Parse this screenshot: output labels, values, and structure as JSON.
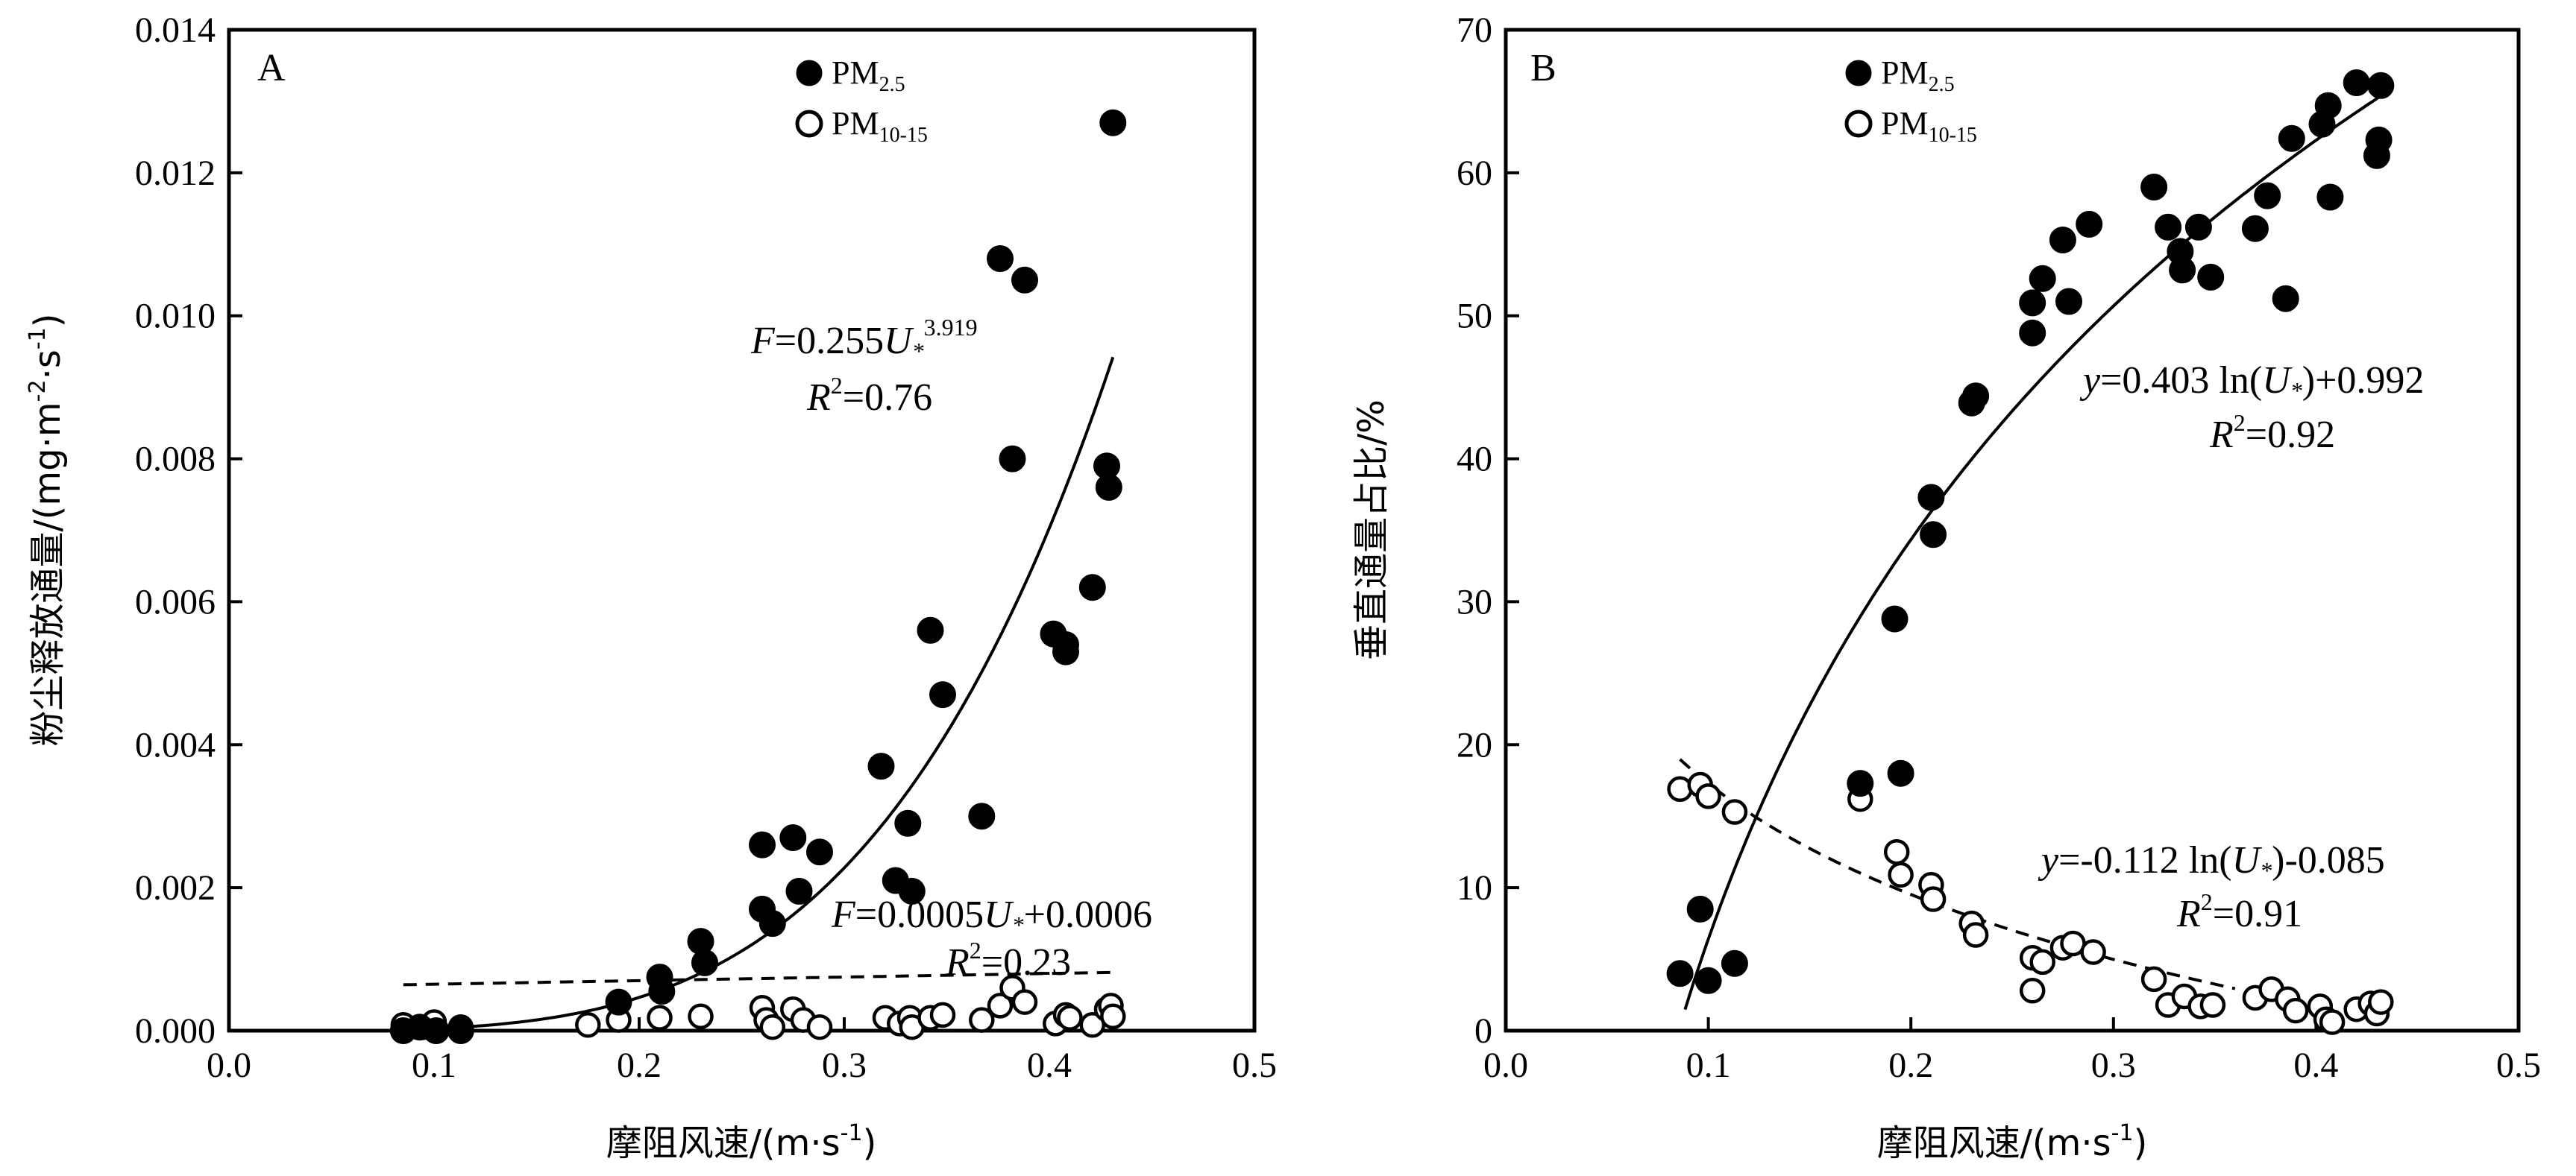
{
  "chart_data": [
    {
      "type": "scatter",
      "panel": "A",
      "xlabel_main": "摩阻风速/(m·s",
      "xlabel_sup": "-1",
      "xlabel_close": ")",
      "ylabel_main": "粉尘释放通量/(mg·m",
      "ylabel_sup1": "-2",
      "ylabel_mid": "·s",
      "ylabel_sup2": "-1",
      "ylabel_close": ")",
      "xlim": [
        0.0,
        0.5
      ],
      "ylim": [
        0.0,
        0.014
      ],
      "xticks": [
        "0.0",
        "0.1",
        "0.2",
        "0.3",
        "0.4",
        "0.5"
      ],
      "yticks": [
        "0.000",
        "0.002",
        "0.004",
        "0.006",
        "0.008",
        "0.010",
        "0.012",
        "0.014"
      ],
      "legend": {
        "placement": "top-center",
        "entries": [
          {
            "label_main": "PM",
            "label_sub": "2.5",
            "marker": "filled-circle"
          },
          {
            "label_main": "PM",
            "label_sub": "10-15",
            "marker": "open-circle"
          }
        ]
      },
      "series": [
        {
          "name": "PM2.5",
          "marker": "filled",
          "points": [
            [
              0.085,
              0.0
            ],
            [
              0.093,
              5e-05
            ],
            [
              0.101,
              0.0
            ],
            [
              0.113,
              0.0
            ],
            [
              0.19,
              0.0004
            ],
            [
              0.21,
              0.00075
            ],
            [
              0.211,
              0.00055
            ],
            [
              0.23,
              0.00125
            ],
            [
              0.232,
              0.00095
            ],
            [
              0.26,
              0.0026
            ],
            [
              0.26,
              0.0017
            ],
            [
              0.265,
              0.0015
            ],
            [
              0.275,
              0.0027
            ],
            [
              0.278,
              0.00195
            ],
            [
              0.288,
              0.0025
            ],
            [
              0.318,
              0.0037
            ],
            [
              0.325,
              0.0021
            ],
            [
              0.331,
              0.0029
            ],
            [
              0.333,
              0.00195
            ],
            [
              0.342,
              0.0056
            ],
            [
              0.348,
              0.0047
            ],
            [
              0.367,
              0.003
            ],
            [
              0.376,
              0.0108
            ],
            [
              0.382,
              0.008
            ],
            [
              0.388,
              0.0105
            ],
            [
              0.402,
              0.00555
            ],
            [
              0.408,
              0.0054
            ],
            [
              0.408,
              0.0053
            ],
            [
              0.421,
              0.0062
            ],
            [
              0.428,
              0.0079
            ],
            [
              0.429,
              0.0076
            ],
            [
              0.431,
              0.0127
            ]
          ]
        },
        {
          "name": "PM10-15",
          "marker": "open",
          "points": [
            [
              0.085,
              8e-05
            ],
            [
              0.095,
              5e-05
            ],
            [
              0.1,
              0.00012
            ],
            [
              0.113,
              5e-05
            ],
            [
              0.175,
              8e-05
            ],
            [
              0.19,
              0.00015
            ],
            [
              0.21,
              0.00018
            ],
            [
              0.23,
              0.0002
            ],
            [
              0.26,
              0.00032
            ],
            [
              0.262,
              0.00015
            ],
            [
              0.265,
              5e-05
            ],
            [
              0.275,
              0.0003
            ],
            [
              0.28,
              0.00015
            ],
            [
              0.288,
              5e-05
            ],
            [
              0.32,
              0.00018
            ],
            [
              0.327,
              0.0001
            ],
            [
              0.332,
              0.00018
            ],
            [
              0.333,
              5e-05
            ],
            [
              0.342,
              0.00018
            ],
            [
              0.348,
              0.00022
            ],
            [
              0.367,
              0.00015
            ],
            [
              0.376,
              0.00035
            ],
            [
              0.382,
              0.0006
            ],
            [
              0.388,
              0.0004
            ],
            [
              0.403,
              0.0001
            ],
            [
              0.408,
              0.00022
            ],
            [
              0.41,
              0.00018
            ],
            [
              0.421,
              8e-05
            ],
            [
              0.428,
              0.0003
            ],
            [
              0.43,
              0.00035
            ],
            [
              0.431,
              0.0002
            ]
          ]
        }
      ],
      "fits": [
        {
          "series": "PM2.5",
          "kind": "power",
          "a": 0.255,
          "b": 3.919,
          "x_range": [
            0.085,
            0.431
          ],
          "style": "solid"
        },
        {
          "series": "PM10-15",
          "kind": "linear",
          "a": 0.0005,
          "b": 0.0006,
          "x_range": [
            0.085,
            0.431
          ],
          "style": "dashed"
        }
      ],
      "equations": [
        {
          "var": "F",
          "rhs_a": "=0.255",
          "u": "U",
          "star": "*",
          "sup": "3.919",
          "rhs_b": "",
          "r_var": "R",
          "r_sup": "2",
          "r_val": "=0.76"
        },
        {
          "var": "F",
          "rhs_a": "=0.0005",
          "u": "U",
          "star": "*",
          "sup": "",
          "rhs_b": "+0.0006",
          "r_var": "R",
          "r_sup": "2",
          "r_val": "=0.23"
        }
      ]
    },
    {
      "type": "scatter",
      "panel": "B",
      "xlabel_main": "摩阻风速/(m·s",
      "xlabel_sup": "-1",
      "xlabel_close": ")",
      "ylabel_main": "垂直通量占比/%",
      "xlim": [
        0.0,
        0.5
      ],
      "ylim": [
        0,
        70
      ],
      "xticks": [
        "0.0",
        "0.1",
        "0.2",
        "0.3",
        "0.4",
        "0.5"
      ],
      "yticks": [
        "0",
        "10",
        "20",
        "30",
        "40",
        "50",
        "60",
        "70"
      ],
      "legend": {
        "placement": "top-center",
        "entries": [
          {
            "label_main": "PM",
            "label_sub": "2.5",
            "marker": "filled-circle"
          },
          {
            "label_main": "PM",
            "label_sub": "10-15",
            "marker": "open-circle"
          }
        ]
      },
      "series": [
        {
          "name": "PM2.5",
          "marker": "filled",
          "points": [
            [
              0.086,
              4.0
            ],
            [
              0.096,
              8.5
            ],
            [
              0.1,
              3.5
            ],
            [
              0.113,
              4.7
            ],
            [
              0.175,
              17.3
            ],
            [
              0.192,
              28.8
            ],
            [
              0.195,
              18.0
            ],
            [
              0.21,
              37.3
            ],
            [
              0.211,
              34.7
            ],
            [
              0.23,
              43.9
            ],
            [
              0.232,
              44.4
            ],
            [
              0.26,
              50.9
            ],
            [
              0.26,
              48.8
            ],
            [
              0.265,
              52.6
            ],
            [
              0.275,
              55.3
            ],
            [
              0.278,
              51.0
            ],
            [
              0.288,
              56.4
            ],
            [
              0.32,
              59.0
            ],
            [
              0.327,
              56.2
            ],
            [
              0.333,
              54.5
            ],
            [
              0.334,
              53.2
            ],
            [
              0.342,
              56.2
            ],
            [
              0.348,
              52.7
            ],
            [
              0.37,
              56.1
            ],
            [
              0.376,
              58.4
            ],
            [
              0.385,
              51.2
            ],
            [
              0.388,
              62.4
            ],
            [
              0.403,
              63.4
            ],
            [
              0.406,
              64.7
            ],
            [
              0.407,
              58.3
            ],
            [
              0.42,
              66.3
            ],
            [
              0.43,
              61.2
            ],
            [
              0.431,
              62.3
            ],
            [
              0.432,
              66.1
            ]
          ]
        },
        {
          "name": "PM10-15",
          "marker": "open",
          "points": [
            [
              0.086,
              16.9
            ],
            [
              0.096,
              17.2
            ],
            [
              0.1,
              16.4
            ],
            [
              0.113,
              15.3
            ],
            [
              0.175,
              16.2
            ],
            [
              0.193,
              12.5
            ],
            [
              0.195,
              10.9
            ],
            [
              0.21,
              10.2
            ],
            [
              0.211,
              9.2
            ],
            [
              0.23,
              7.5
            ],
            [
              0.232,
              6.7
            ],
            [
              0.26,
              5.1
            ],
            [
              0.26,
              2.8
            ],
            [
              0.265,
              4.8
            ],
            [
              0.275,
              5.8
            ],
            [
              0.28,
              6.1
            ],
            [
              0.29,
              5.5
            ],
            [
              0.32,
              3.6
            ],
            [
              0.327,
              1.8
            ],
            [
              0.335,
              2.4
            ],
            [
              0.343,
              1.7
            ],
            [
              0.349,
              1.8
            ],
            [
              0.37,
              2.3
            ],
            [
              0.378,
              2.9
            ],
            [
              0.386,
              2.2
            ],
            [
              0.39,
              1.4
            ],
            [
              0.402,
              1.7
            ],
            [
              0.405,
              0.8
            ],
            [
              0.408,
              0.6
            ],
            [
              0.42,
              1.5
            ],
            [
              0.427,
              1.9
            ],
            [
              0.43,
              1.2
            ],
            [
              0.432,
              2.0
            ]
          ]
        }
      ],
      "fits": [
        {
          "series": "PM2.5",
          "kind": "log",
          "a": 0.403,
          "b": 0.992,
          "scale": 100,
          "x_range": [
            0.0885,
            0.432
          ],
          "style": "solid"
        },
        {
          "series": "PM10-15",
          "kind": "log",
          "a": -0.112,
          "b": -0.085,
          "scale": 100,
          "x_range": [
            0.086,
            0.36
          ],
          "style": "dashed"
        }
      ],
      "equations": [
        {
          "var": "y",
          "rhs_a": "=0.403 ln(",
          "u": "U",
          "star": "*",
          "rhs_b": ")+0.992",
          "r_var": "R",
          "r_sup": "2",
          "r_val": "=0.92"
        },
        {
          "var": "y",
          "rhs_a": "=-0.112 ln(",
          "u": "U",
          "star": "*",
          "rhs_b": ")-0.085",
          "r_var": "R",
          "r_sup": "2",
          "r_val": "=0.91"
        }
      ]
    }
  ]
}
